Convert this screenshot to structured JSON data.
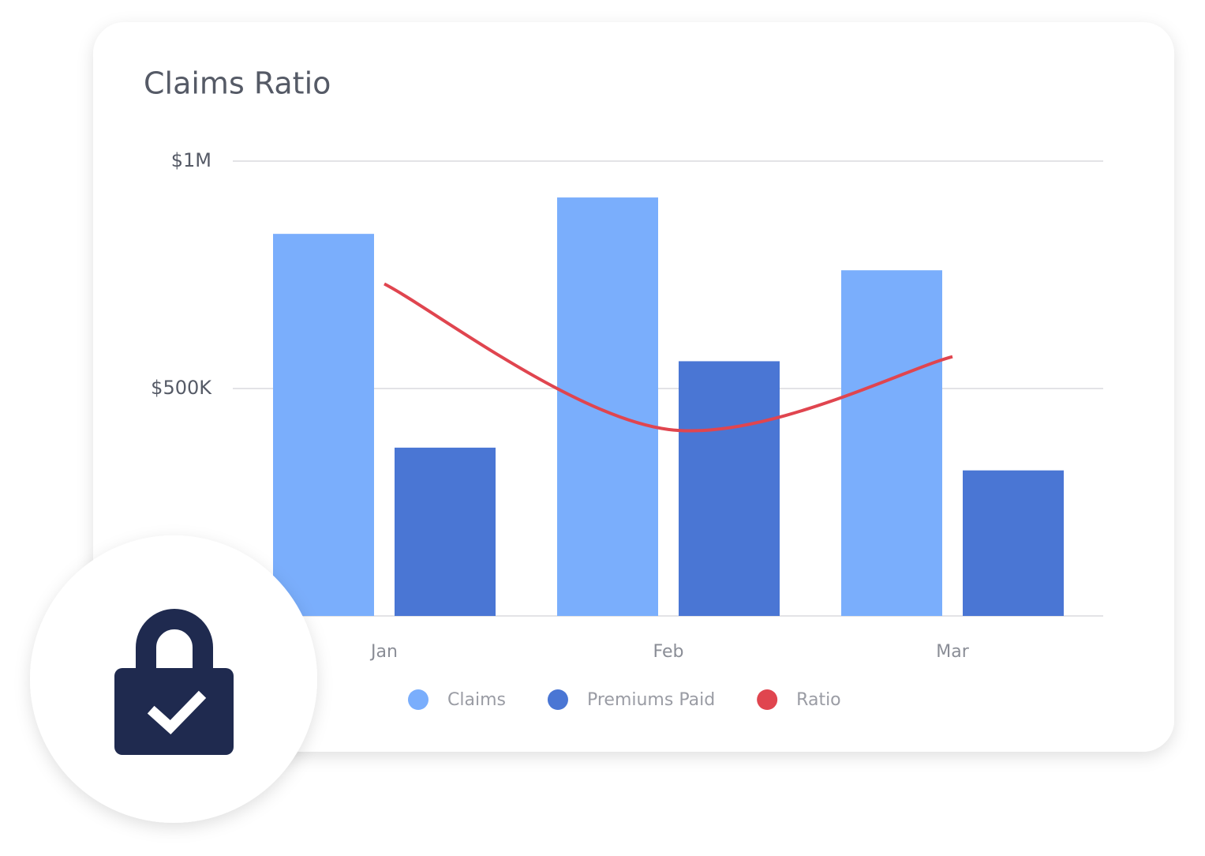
{
  "chart_data": {
    "type": "bar",
    "title": "Claims Ratio",
    "categories": [
      "Jan",
      "Feb",
      "Mar"
    ],
    "series": [
      {
        "name": "Claims",
        "color": "#7aaefc",
        "values": [
          840000,
          920000,
          760000
        ]
      },
      {
        "name": "Premiums Paid",
        "color": "#4a76d4",
        "values": [
          370000,
          560000,
          320000
        ]
      },
      {
        "name": "Ratio",
        "color": "#e0454f",
        "type": "line",
        "values": [
          730000,
          410000,
          570000
        ]
      }
    ],
    "ylim": [
      0,
      1000000
    ],
    "yticks": [
      {
        "value": 500000,
        "label": "$500K"
      },
      {
        "value": 1000000,
        "label": "$1M"
      }
    ],
    "grid": true
  }
}
